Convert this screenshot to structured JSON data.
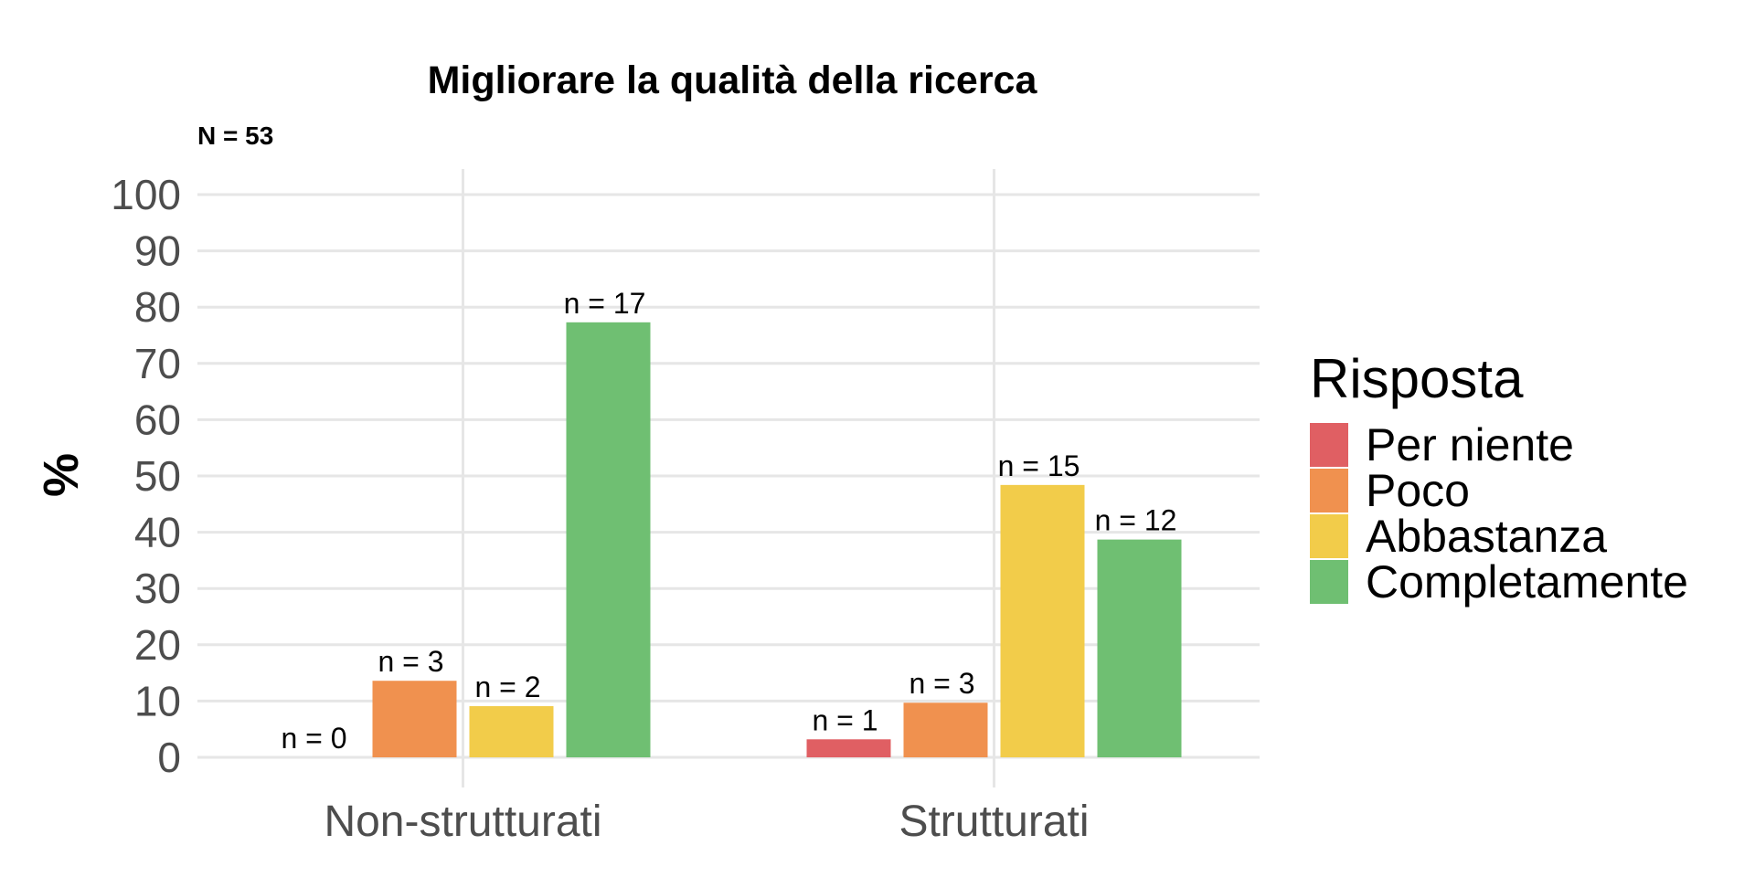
{
  "chart_data": {
    "type": "bar",
    "title": "Migliorare la qualità della ricerca",
    "subtitle": "N = 53",
    "xlabel": "",
    "ylabel": "%",
    "ylim": [
      0,
      100
    ],
    "yticks": [
      0,
      10,
      20,
      30,
      40,
      50,
      60,
      70,
      80,
      90,
      100
    ],
    "categories": [
      "Non-strutturati",
      "Strutturati"
    ],
    "grid": true,
    "legend": {
      "title": "Risposta",
      "position": "right"
    },
    "series": [
      {
        "name": "Per niente",
        "color": "#e05f63",
        "values": [
          0,
          3.2
        ],
        "labels": [
          "n = 0",
          "n = 1"
        ]
      },
      {
        "name": "Poco",
        "color": "#f0914f",
        "values": [
          13.6,
          9.7
        ],
        "labels": [
          "n = 3",
          "n = 3"
        ]
      },
      {
        "name": "Abbastanza",
        "color": "#f2cc4a",
        "values": [
          9.1,
          48.4
        ],
        "labels": [
          "n = 2",
          "n = 15"
        ]
      },
      {
        "name": "Completamente",
        "color": "#6fbf72",
        "values": [
          77.3,
          38.7
        ],
        "labels": [
          "n = 17",
          "n = 12"
        ]
      }
    ]
  }
}
